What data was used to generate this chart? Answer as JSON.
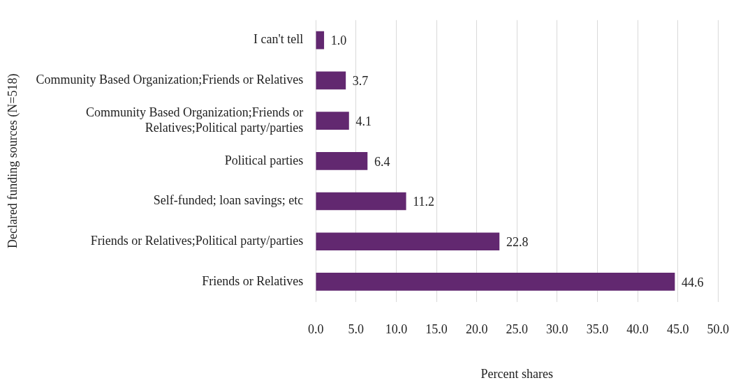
{
  "chart_data": {
    "type": "bar",
    "orientation": "horizontal",
    "xlabel": "Percent shares",
    "ylabel": "Declared funding sources (N=518)",
    "categories": [
      "I can't tell",
      "Community Based Organization;Friends or Relatives",
      "Community Based Organization;Friends or Relatives;Political party/parties",
      "Political parties",
      "Self-funded; loan savings; etc",
      "Friends or Relatives;Political party/parties",
      "Friends or Relatives"
    ],
    "values": [
      1.0,
      3.7,
      4.1,
      6.4,
      11.2,
      22.8,
      44.6
    ],
    "value_labels": [
      "1.0",
      "3.7",
      "4.1",
      "6.4",
      "11.2",
      "22.8",
      "44.6"
    ],
    "color": "#622870",
    "xlim": [
      0,
      50
    ],
    "xticks": [
      {
        "value": 0,
        "label": "0.0"
      },
      {
        "value": 5,
        "label": "5.0"
      },
      {
        "value": 10,
        "label": "10.0"
      },
      {
        "value": 15,
        "label": "15.0"
      },
      {
        "value": 20,
        "label": "20.0"
      },
      {
        "value": 25,
        "label": "25.0"
      },
      {
        "value": 30,
        "label": "30.0"
      },
      {
        "value": 35,
        "label": "35.0"
      },
      {
        "value": 40,
        "label": "40.0"
      },
      {
        "value": 45,
        "label": "45.0"
      },
      {
        "value": 50,
        "label": "50.0"
      }
    ],
    "grid": "x",
    "legend": false
  }
}
